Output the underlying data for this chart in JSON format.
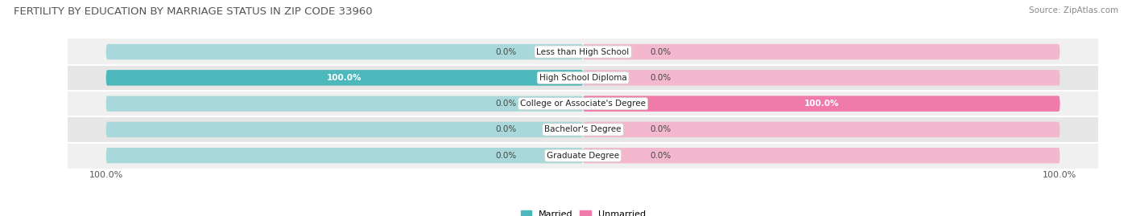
{
  "title": "FERTILITY BY EDUCATION BY MARRIAGE STATUS IN ZIP CODE 33960",
  "source": "Source: ZipAtlas.com",
  "categories": [
    "Less than High School",
    "High School Diploma",
    "College or Associate's Degree",
    "Bachelor's Degree",
    "Graduate Degree"
  ],
  "married": [
    0.0,
    100.0,
    0.0,
    0.0,
    0.0
  ],
  "unmarried": [
    0.0,
    0.0,
    100.0,
    0.0,
    0.0
  ],
  "married_color": "#4db8bc",
  "unmarried_color": "#f07aaa",
  "bar_bg_color_left": "#a8d8da",
  "bar_bg_color_right": "#f4b8ce",
  "row_bg_even": "#f0f0f0",
  "row_bg_odd": "#e6e6e6",
  "max_val": 100.0,
  "stub_val": 12.0,
  "title_fontsize": 9.5,
  "source_fontsize": 7.5,
  "tick_fontsize": 8,
  "label_fontsize": 7.5,
  "cat_fontsize": 7.5,
  "bar_height": 0.6,
  "legend_married": "Married",
  "legend_unmarried": "Unmarried"
}
